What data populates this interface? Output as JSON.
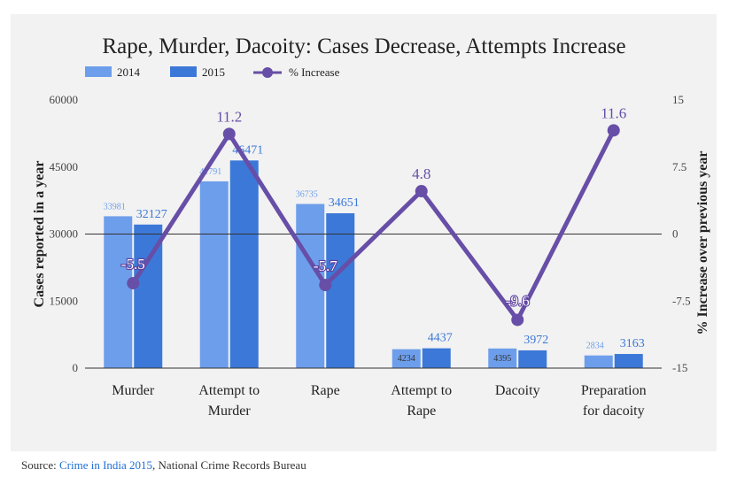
{
  "chart_data": {
    "type": "bar",
    "title": "Rape, Murder, Dacoity: Cases Decrease, Attempts Increase",
    "categories": [
      [
        "Murder"
      ],
      [
        "Attempt to",
        "Murder"
      ],
      [
        "Rape"
      ],
      [
        "Attempt to",
        "Rape"
      ],
      [
        "Dacoity"
      ],
      [
        "Preparation",
        "for dacoity"
      ]
    ],
    "series": [
      {
        "name": "2014",
        "type": "bar",
        "axis": "left",
        "color": "#6d9eeb",
        "values": [
          33981,
          41791,
          36735,
          4234,
          4395,
          2834
        ]
      },
      {
        "name": "2015",
        "type": "bar",
        "axis": "left",
        "color": "#3c78d8",
        "values": [
          32127,
          46471,
          34651,
          4437,
          3972,
          3163
        ]
      },
      {
        "name": "% Increase",
        "type": "line",
        "axis": "right",
        "color": "#674ea7",
        "values": [
          -5.5,
          11.2,
          -5.7,
          4.8,
          -9.6,
          11.6
        ]
      }
    ],
    "ylabel": "Cases reported in a year",
    "y2label": "% Increase over previous year",
    "ylim": [
      0,
      60000
    ],
    "yticks": [
      0,
      15000,
      30000,
      45000,
      60000
    ],
    "y2lim": [
      -15,
      15
    ],
    "y2ticks": [
      -15,
      -7.5,
      0,
      7.5,
      15
    ],
    "legend_position": "top-left",
    "grid": false
  },
  "source": {
    "prefix": "Source: ",
    "link_text": "Crime in India 2015",
    "suffix": ", National Crime Records Bureau"
  }
}
